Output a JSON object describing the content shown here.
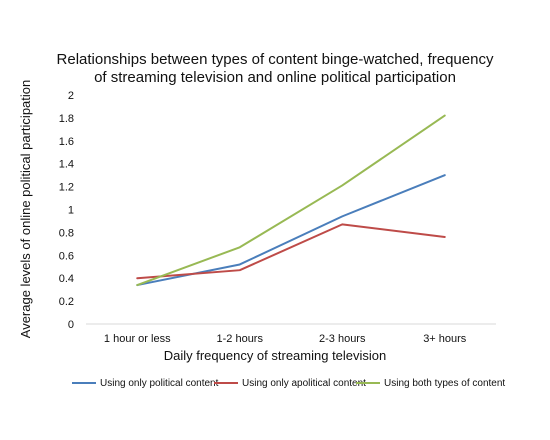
{
  "chart_data": {
    "type": "line",
    "title_lines": [
      "Relationships between types of content binge-watched, frequency",
      "of streaming television and online political participation"
    ],
    "xlabel": "Daily frequency of streaming television",
    "ylabel_lines": [
      "Average levels of online political participation"
    ],
    "categories": [
      "1 hour or less",
      "1-2 hours",
      "2-3 hours",
      "3+ hours"
    ],
    "ylim": [
      0,
      2
    ],
    "yticks": [
      0,
      0.2,
      0.4,
      0.6,
      0.8,
      1,
      1.2,
      1.4,
      1.6,
      1.8,
      2
    ],
    "ytick_labels": [
      "0",
      "0.2",
      "0.4",
      "0.6",
      "0.8",
      "1",
      "1.2",
      "1.4",
      "1.6",
      "1.8",
      "2"
    ],
    "series": [
      {
        "name": "Using only political content",
        "values": [
          0.34,
          0.52,
          0.94,
          1.3
        ],
        "color": "#4A7EBB"
      },
      {
        "name": "Using only apolitical content",
        "values": [
          0.4,
          0.47,
          0.87,
          0.76
        ],
        "color": "#BE4B48"
      },
      {
        "name": "Using both types of content",
        "values": [
          0.34,
          0.67,
          1.21,
          1.82
        ],
        "color": "#98B954"
      }
    ],
    "legend_position": "bottom",
    "grid": false
  }
}
